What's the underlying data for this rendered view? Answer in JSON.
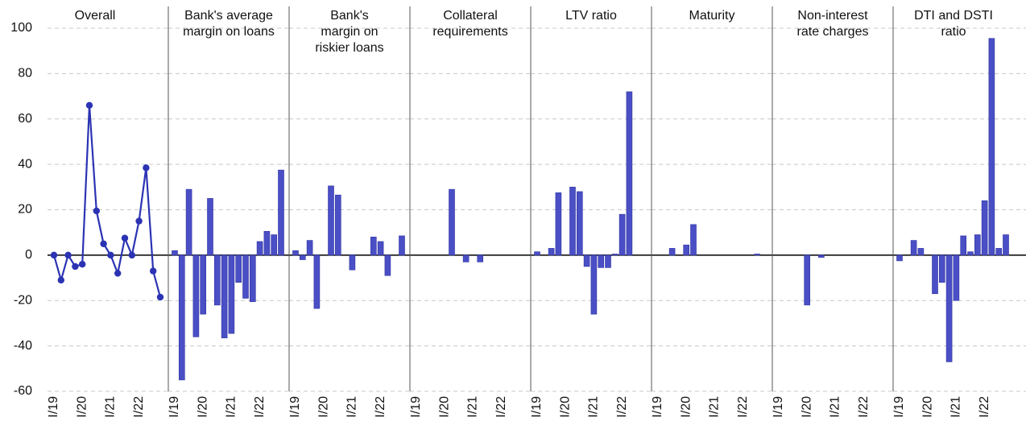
{
  "chart_data": [
    {
      "type": "line",
      "title": [
        "Overall"
      ],
      "color": "#2b33b3",
      "categories": [
        "I/19",
        null,
        null,
        null,
        "I/20",
        null,
        null,
        null,
        "I/21",
        null,
        null,
        null,
        "I/22",
        null,
        null,
        null
      ],
      "values": [
        0,
        -11,
        0,
        -5,
        -4,
        66,
        19.5,
        5,
        0,
        -8,
        7.5,
        0,
        15,
        38.5,
        -7,
        -18.5
      ],
      "ylim": [
        -60,
        100
      ],
      "yticks": [
        -60,
        -40,
        -20,
        0,
        20,
        40,
        60,
        80,
        100
      ],
      "grid": true
    },
    {
      "type": "bar",
      "title": [
        "Bank's average",
        "margin on loans"
      ],
      "color": "#4a4fc6",
      "categories": [
        "I/19",
        null,
        null,
        null,
        "I/20",
        null,
        null,
        null,
        "I/21",
        null,
        null,
        null,
        "I/22",
        null,
        null,
        null
      ],
      "values": [
        2,
        -55,
        29,
        -36,
        -26,
        25,
        -22,
        -36.5,
        -34.5,
        -12,
        -19,
        -20.5,
        6,
        10.5,
        9,
        37.5
      ],
      "ylim": [
        -60,
        100
      ],
      "yticks": [
        -60,
        -40,
        -20,
        0,
        20,
        40,
        60,
        80,
        100
      ],
      "grid": true
    },
    {
      "type": "bar",
      "title": [
        "Bank's",
        "margin on",
        "riskier loans"
      ],
      "color": "#4a4fc6",
      "categories": [
        "I/19",
        null,
        null,
        null,
        "I/20",
        null,
        null,
        null,
        "I/21",
        null,
        null,
        null,
        "I/22",
        null,
        null,
        null
      ],
      "values": [
        2,
        -2,
        6.5,
        -23.5,
        0,
        30.5,
        26.5,
        0,
        -6.5,
        0,
        0,
        8,
        6,
        -9,
        0,
        8.5
      ],
      "ylim": [
        -60,
        100
      ],
      "yticks": [
        -60,
        -40,
        -20,
        0,
        20,
        40,
        60,
        80,
        100
      ],
      "grid": true
    },
    {
      "type": "bar",
      "title": [
        "Collateral",
        "requirements"
      ],
      "color": "#4a4fc6",
      "categories": [
        "I/19",
        null,
        null,
        null,
        "I/20",
        null,
        null,
        null,
        "I/21",
        null,
        null,
        null,
        "I/22",
        null,
        null,
        null
      ],
      "values": [
        0,
        0,
        0,
        0,
        0,
        29,
        0,
        -3,
        0,
        -3,
        0,
        0,
        0,
        0,
        0,
        0
      ],
      "ylim": [
        -60,
        100
      ],
      "yticks": [
        -60,
        -40,
        -20,
        0,
        20,
        40,
        60,
        80,
        100
      ],
      "grid": true
    },
    {
      "type": "bar",
      "title": [
        "LTV ratio"
      ],
      "color": "#4a4fc6",
      "categories": [
        "I/19",
        null,
        null,
        null,
        "I/20",
        null,
        null,
        null,
        "I/21",
        null,
        null,
        null,
        "I/22",
        null,
        null,
        null
      ],
      "values": [
        1.5,
        0,
        3,
        27.5,
        0,
        30,
        28,
        -5,
        -26,
        -5.5,
        -5.5,
        0.5,
        18,
        72,
        0,
        0
      ],
      "ylim": [
        -60,
        100
      ],
      "yticks": [
        -60,
        -40,
        -20,
        0,
        20,
        40,
        60,
        80,
        100
      ],
      "grid": true
    },
    {
      "type": "bar",
      "title": [
        "Maturity"
      ],
      "color": "#4a4fc6",
      "categories": [
        "I/19",
        null,
        null,
        null,
        "I/20",
        null,
        null,
        null,
        "I/21",
        null,
        null,
        null,
        "I/22",
        null,
        null,
        null
      ],
      "values": [
        0,
        0,
        3,
        0,
        4.5,
        13.5,
        0,
        0,
        0,
        0,
        0,
        0,
        0,
        0,
        0.5,
        0
      ],
      "ylim": [
        -60,
        100
      ],
      "yticks": [
        -60,
        -40,
        -20,
        0,
        20,
        40,
        60,
        80,
        100
      ],
      "grid": true
    },
    {
      "type": "bar",
      "title": [
        "Non-interest",
        "rate charges"
      ],
      "color": "#4a4fc6",
      "categories": [
        "I/19",
        null,
        null,
        null,
        "I/20",
        null,
        null,
        null,
        "I/21",
        null,
        null,
        null,
        "I/22",
        null,
        null,
        null
      ],
      "values": [
        0,
        0,
        0,
        0,
        -22,
        0,
        -1,
        0,
        0,
        0,
        0,
        0,
        0,
        0,
        0,
        0
      ],
      "ylim": [
        -60,
        100
      ],
      "yticks": [
        -60,
        -40,
        -20,
        0,
        20,
        40,
        60,
        80,
        100
      ],
      "grid": true
    },
    {
      "type": "bar",
      "title": [
        "DTI and DSTI",
        "ratio"
      ],
      "color": "#4a4fc6",
      "categories": [
        "I/19",
        null,
        null,
        null,
        "I/20",
        null,
        null,
        null,
        "I/21",
        null,
        null,
        null,
        "I/22",
        null,
        null,
        null
      ],
      "values": [
        -2.5,
        0,
        6.5,
        3,
        0,
        -17,
        -12,
        -47,
        -20,
        8.5,
        1.5,
        9,
        24,
        95.5,
        3,
        9
      ],
      "ylim": [
        -60,
        100
      ],
      "yticks": [
        -60,
        -40,
        -20,
        0,
        20,
        40,
        60,
        80,
        100
      ],
      "grid": true
    }
  ]
}
